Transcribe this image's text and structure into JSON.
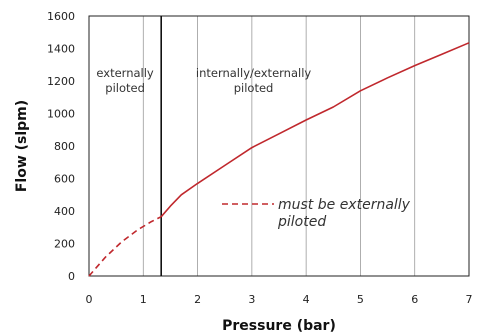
{
  "chart_data": {
    "type": "line",
    "title": "",
    "xlabel": "Pressure (bar)",
    "ylabel": "Flow (slpm)",
    "xlim": [
      0,
      7
    ],
    "ylim": [
      0,
      1600
    ],
    "xticks": [
      0,
      1,
      2,
      3,
      4,
      5,
      6,
      7
    ],
    "yticks": [
      0,
      200,
      400,
      600,
      800,
      1000,
      1200,
      1400,
      1600
    ],
    "grid": "vertical",
    "divider_x": 1.33,
    "regions": [
      {
        "lines": [
          "externally",
          "piloted"
        ]
      },
      {
        "lines": [
          "internally/externally",
          "piloted"
        ]
      }
    ],
    "series": [
      {
        "style": "dashed",
        "color": "#c0282d",
        "x": [
          0,
          0.3,
          0.6,
          0.9,
          1.15,
          1.33
        ],
        "y": [
          0,
          115,
          210,
          285,
          335,
          365
        ]
      },
      {
        "style": "solid",
        "color": "#c0282d",
        "x": [
          1.33,
          1.5,
          1.7,
          2.0,
          2.5,
          3.0,
          3.5,
          4.0,
          4.5,
          5.0,
          5.5,
          6.0,
          6.5,
          7.0
        ],
        "y": [
          365,
          430,
          500,
          570,
          680,
          790,
          875,
          960,
          1040,
          1140,
          1220,
          1295,
          1365,
          1435
        ]
      }
    ],
    "legend": {
      "lines": [
        "must be externally",
        "piloted"
      ],
      "style": "dashed",
      "color": "#c0282d"
    }
  }
}
